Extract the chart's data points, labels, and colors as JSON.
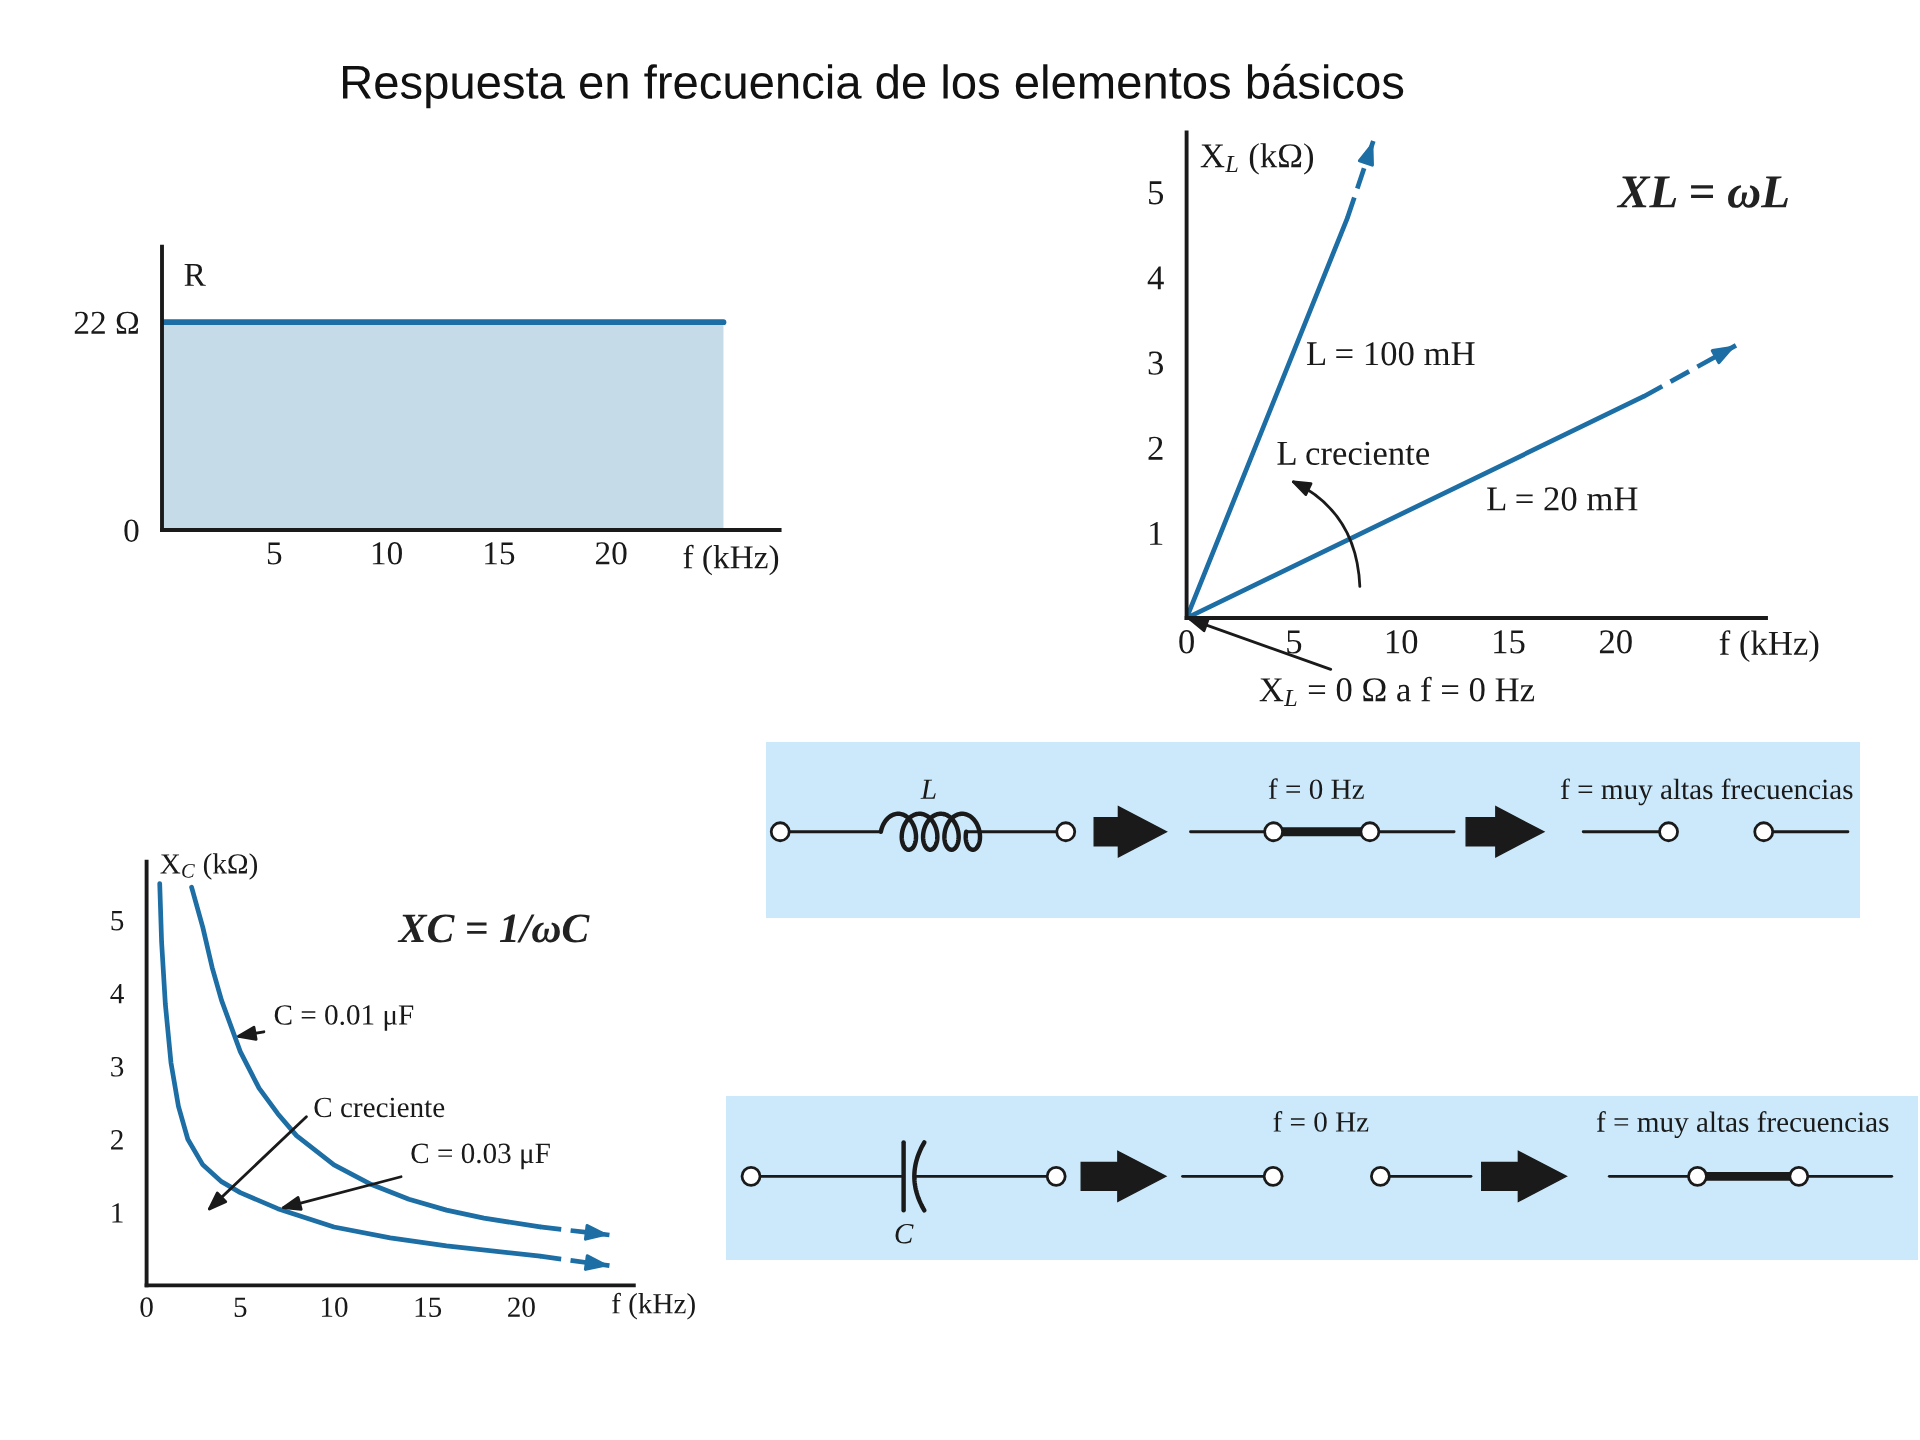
{
  "chart_data": [
    {
      "type": "area",
      "title": "Respuesta en frecuencia de los elementos básicos",
      "xlabel": "f (kHz)",
      "ylabel": "R",
      "series": [
        {
          "color": "#1c6ea4",
          "x": [
            0,
            25
          ],
          "values": [
            22,
            22
          ]
        }
      ],
      "xlim": [
        0,
        27.5
      ],
      "xticks": [
        5,
        10,
        15,
        20
      ],
      "ylim": [
        0,
        30
      ],
      "yticks": [
        0,
        {
          "value": 22,
          "label": "22 Ω"
        }
      ]
    },
    {
      "type": "line",
      "xlabel": "f (kHz)",
      "ylabel": "X$_{L}$ (kΩ)",
      "series": [
        {
          "name": "L = 100 mH",
          "color": "#1c6ea4",
          "x": [
            0,
            7.5
          ],
          "values": [
            0,
            4.7
          ]
        },
        {
          "color": "#1c6ea4",
          "x": [
            7.5,
            8.7
          ],
          "values": [
            4.7,
            5.6
          ],
          "line_style": "dashed"
        },
        {
          "name": "L = 20 mH",
          "color": "#1c6ea4",
          "x": [
            0,
            21.3
          ],
          "values": [
            0,
            2.6
          ]
        },
        {
          "color": "#1c6ea4",
          "x": [
            21.3,
            25.6
          ],
          "values": [
            2.6,
            3.2
          ],
          "line_style": "dashed"
        }
      ],
      "xlim": [
        0,
        27
      ],
      "xticks": [
        0,
        5,
        10,
        15,
        20
      ],
      "ylim": [
        0,
        5.7
      ],
      "yticks": [
        1,
        2,
        3,
        4,
        5
      ],
      "annotations": [
        "L creciente",
        {
          "text": "X$_{L}$ = 0 Ω a f = 0 Hz",
          "x": 0,
          "y": 0
        },
        "XL = ωL"
      ]
    },
    {
      "type": "other",
      "annotations": [
        "L",
        "f = 0 Hz",
        "f = muy altas frecuencias"
      ]
    },
    {
      "type": "line",
      "xlabel": "f (kHz)",
      "ylabel": "X$_{C}$ (kΩ)",
      "series": [
        {
          "color": "#1c6ea4",
          "x": [
            2.4,
            3,
            3.5,
            4,
            5,
            6,
            7,
            8,
            10,
            12,
            14,
            16,
            18,
            21
          ],
          "values": [
            5.45,
            4.9,
            4.35,
            3.9,
            3.2,
            2.7,
            2.35,
            2.05,
            1.65,
            1.38,
            1.18,
            1.03,
            0.92,
            0.8
          ]
        },
        {
          "color": "#1c6ea4",
          "x": [
            21,
            24.7
          ],
          "values": [
            0.8,
            0.69
          ],
          "line_style": "dashed"
        },
        {
          "color": "#1c6ea4",
          "x": [
            0.7,
            0.8,
            1,
            1.3,
            1.7,
            2.2,
            3,
            4,
            5,
            7,
            10,
            13,
            16,
            21
          ],
          "values": [
            5.5,
            4.7,
            3.85,
            3.05,
            2.45,
            2.0,
            1.65,
            1.42,
            1.27,
            1.05,
            0.8,
            0.65,
            0.54,
            0.4
          ]
        },
        {
          "color": "#1c6ea4",
          "x": [
            21,
            24.7
          ],
          "values": [
            0.4,
            0.27
          ],
          "line_style": "dashed"
        }
      ],
      "xlim": [
        0,
        26
      ],
      "xticks": [
        0,
        5,
        10,
        15,
        20
      ],
      "ylim": [
        0,
        5.8
      ],
      "yticks": [
        1,
        2,
        3,
        4,
        5
      ],
      "annotations": [
        "XC = 1/ωC",
        {
          "text": "C = 0.01 μF",
          "x": 4.7,
          "y": 3.4
        },
        {
          "text": "C = 0.03 μF",
          "x": 7.1,
          "y": 1.05
        },
        "C creciente"
      ]
    },
    {
      "type": "other",
      "annotations": [
        "C",
        "f = 0 Hz",
        "f = muy altas frecuencias"
      ]
    }
  ]
}
